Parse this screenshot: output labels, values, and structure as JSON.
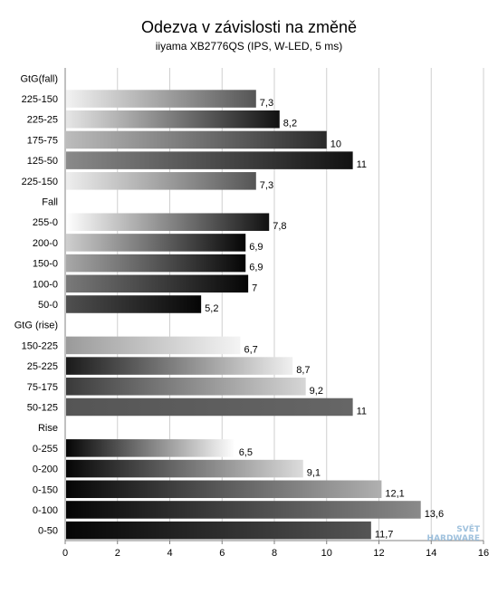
{
  "chart_data": {
    "type": "bar",
    "orientation": "horizontal",
    "title": "Odezva v závislosti na změně",
    "subtitle": "iiyama XB2776QS   (IPS, W-LED, 5 ms)",
    "xlim": [
      0,
      16
    ],
    "x_ticks": [
      "0",
      "2",
      "4",
      "6",
      "8",
      "10",
      "12",
      "14",
      "16"
    ],
    "grid": true,
    "groups": [
      {
        "label": "GtG(fall)",
        "bars": [
          {
            "category": "225-150",
            "value": 7.3,
            "value_label": "7,3"
          },
          {
            "category": "225-25",
            "value": 8.2,
            "value_label": "8,2"
          },
          {
            "category": "175-75",
            "value": 10,
            "value_label": "10"
          },
          {
            "category": "125-50",
            "value": 11,
            "value_label": "11"
          },
          {
            "category": "225-150",
            "value": 7.3,
            "value_label": "7,3"
          }
        ]
      },
      {
        "label": "Fall",
        "bars": [
          {
            "category": "255-0",
            "value": 7.8,
            "value_label": "7,8"
          },
          {
            "category": "200-0",
            "value": 6.9,
            "value_label": "6,9"
          },
          {
            "category": "150-0",
            "value": 6.9,
            "value_label": "6,9"
          },
          {
            "category": "100-0",
            "value": 7,
            "value_label": "7"
          },
          {
            "category": "50-0",
            "value": 5.2,
            "value_label": "5,2"
          }
        ]
      },
      {
        "label": "GtG (rise)",
        "bars": [
          {
            "category": "150-225",
            "value": 6.7,
            "value_label": "6,7"
          },
          {
            "category": "25-225",
            "value": 8.7,
            "value_label": "8,7"
          },
          {
            "category": "75-175",
            "value": 9.2,
            "value_label": "9,2"
          },
          {
            "category": "50-125",
            "value": 11,
            "value_label": "11"
          }
        ]
      },
      {
        "label": "Rise",
        "bars": [
          {
            "category": "0-255",
            "value": 6.5,
            "value_label": "6,5"
          },
          {
            "category": "0-200",
            "value": 9.1,
            "value_label": "9,1"
          },
          {
            "category": "0-150",
            "value": 12.1,
            "value_label": "12,1"
          },
          {
            "category": "0-100",
            "value": 13.6,
            "value_label": "13,6"
          },
          {
            "category": "0-50",
            "value": 11.7,
            "value_label": "11,7"
          }
        ]
      }
    ]
  },
  "watermark": {
    "line1": "SVĚT",
    "line2": "HARDWARE"
  },
  "colors": {
    "grid": "#cfcfcf",
    "axis": "#808080"
  }
}
